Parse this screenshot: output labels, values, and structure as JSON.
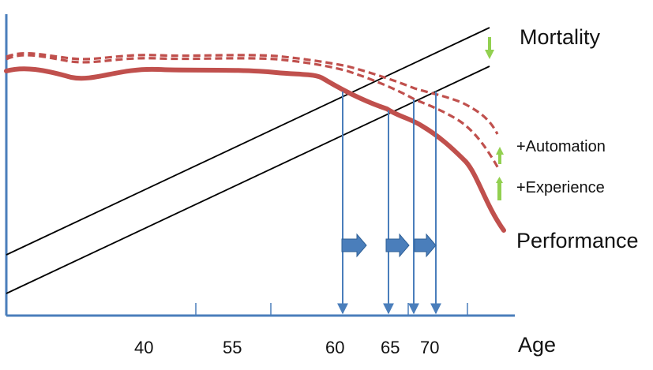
{
  "labels": {
    "mortality": "Mortality",
    "automation": "+Automation",
    "experience": "+Experience",
    "performance": "Performance",
    "x_axis": "Age"
  },
  "x_ticks": [
    "40",
    "55",
    "60",
    "65",
    "70"
  ],
  "colors": {
    "axis": "#4a7ebb",
    "performance_curve": "#c0504d",
    "mortality_lines": "#000000",
    "drop_lines": "#4a7ebb",
    "shift_arrows": "#4a7ebb",
    "adjust_arrows": "#92d050"
  },
  "icons": {
    "shift_arrow": "right-arrow-icon",
    "down_arrow": "down-arrow-icon",
    "up_arrow": "up-arrow-icon"
  }
}
